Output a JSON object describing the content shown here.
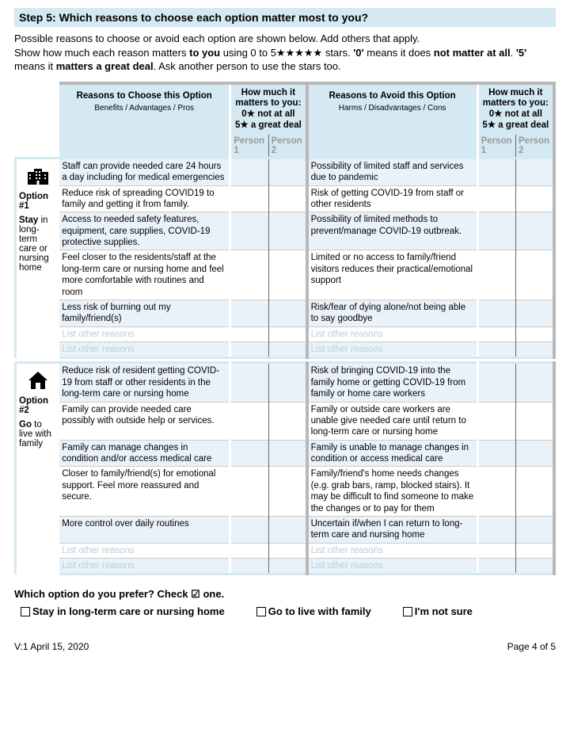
{
  "header": "Step 5: Which reasons to choose each option matter most to you?",
  "intro_p1": "Possible reasons to choose or avoid each option are shown below. Add others that apply.",
  "intro_p2a": "Show how much each reason matters ",
  "intro_p2b": "to you",
  "intro_p2c": " using 0 to 5★★★★★ stars. ",
  "intro_p2d": "'0'",
  "intro_p2e": " means it does ",
  "intro_p2f": "not matter at all",
  "intro_p2g": ".  ",
  "intro_p2h": "'5'",
  "intro_p2i": " means it ",
  "intro_p2j": "matters a great deal",
  "intro_p2k": ". Ask another person to use the stars too.",
  "col_choose_title": "Reasons to Choose this Option",
  "col_choose_sub": "Benefits / Advantages / Pros",
  "col_avoid_title": "Reasons to Avoid this Option",
  "col_avoid_sub": "Harms / Disadvantages / Cons",
  "matters_title": "How much it matters to you:",
  "matters_0": "0★ not at all",
  "matters_5": "5★ a great deal",
  "person1": "Person 1",
  "person2": "Person 2",
  "placeholder": "List other reasons",
  "option1": {
    "label": "Option #1",
    "desc_b": "Stay",
    "desc": " in long-term care or nursing home",
    "choose": [
      "Staff can provide needed care 24 hours a day including for medical emergencies",
      "Reduce risk of spreading COVID19 to family and getting it from family.",
      "Access to needed safety features, equipment, care supplies, COVID-19 protective supplies.",
      "Feel closer to the residents/staff at the long-term care or nursing home and feel more comfortable with routines and room",
      "Less risk of burning out my family/friend(s)"
    ],
    "avoid": [
      "Possibility of limited staff and services due to pandemic",
      "Risk of getting COVID-19 from staff or other residents",
      "Possibility of limited methods to prevent/manage COVID-19 outbreak.",
      "Limited or no access to family/friend visitors reduces their practical/emotional support",
      "Risk/fear of dying alone/not being able to say goodbye"
    ]
  },
  "option2": {
    "label": "Option #2",
    "desc_b": "Go",
    "desc": " to live with family",
    "choose": [
      "Reduce risk of resident getting COVID-19 from staff or other residents in the long-term care or nursing home",
      "Family can provide needed care possibly with outside help or services.",
      "Family can manage changes in condition and/or access medical care",
      "Closer to family/friend(s) for emotional support. Feel more reassured and secure.",
      "More control over daily routines"
    ],
    "avoid": [
      "Risk of bringing COVID-19 into the family home or getting COVID-19 from family or home care workers",
      "Family or outside care workers are unable give needed care until return to long-term care or nursing home",
      "Family is unable to manage changes in condition or access medical care",
      "Family/friend's home needs changes (e.g. grab bars, ramp, blocked stairs). It may be difficult to find someone to make the changes or to pay for them",
      "Uncertain if/when I can return to long-term care and nursing home"
    ]
  },
  "question_a": "Which option do you prefer? Check ",
  "question_b": "☑",
  "question_c": " one.",
  "choice1": "Stay in long-term care or nursing home",
  "choice2": "Go to live with family",
  "choice3": "I'm not sure",
  "footer_left": "V:1 April 15, 2020",
  "footer_right": "Page 4 of 5",
  "colors": {
    "header_bg": "#d4e9f2",
    "stripe": "#eaf2f9",
    "grey_border": "#b8b8b8",
    "placeholder": "#b8cfd9"
  }
}
